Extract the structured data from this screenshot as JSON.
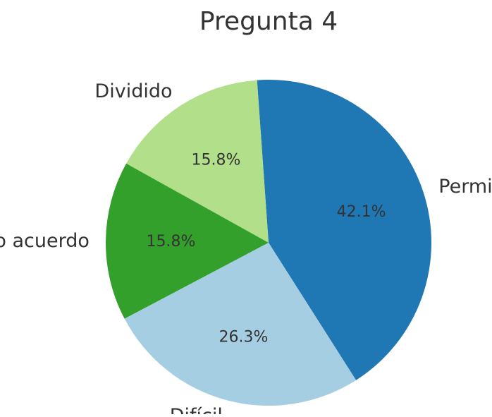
{
  "chart_data": {
    "type": "pie",
    "title": "Pregunta 4",
    "slices": [
      {
        "label": "Permitido",
        "value": 42.1,
        "pct_label": "42.1%",
        "color": "#1f77b4"
      },
      {
        "label": "Dividido",
        "value": 15.8,
        "pct_label": "15.8%",
        "color": "#b2df8a"
      },
      {
        "label": "No acuerdo",
        "value": 15.8,
        "pct_label": "15.8%",
        "color": "#33a02c"
      },
      {
        "label": "Difícil",
        "value": 26.3,
        "pct_label": "26.3%",
        "color": "#a6cee3"
      }
    ],
    "legend": "none",
    "grid": false
  }
}
